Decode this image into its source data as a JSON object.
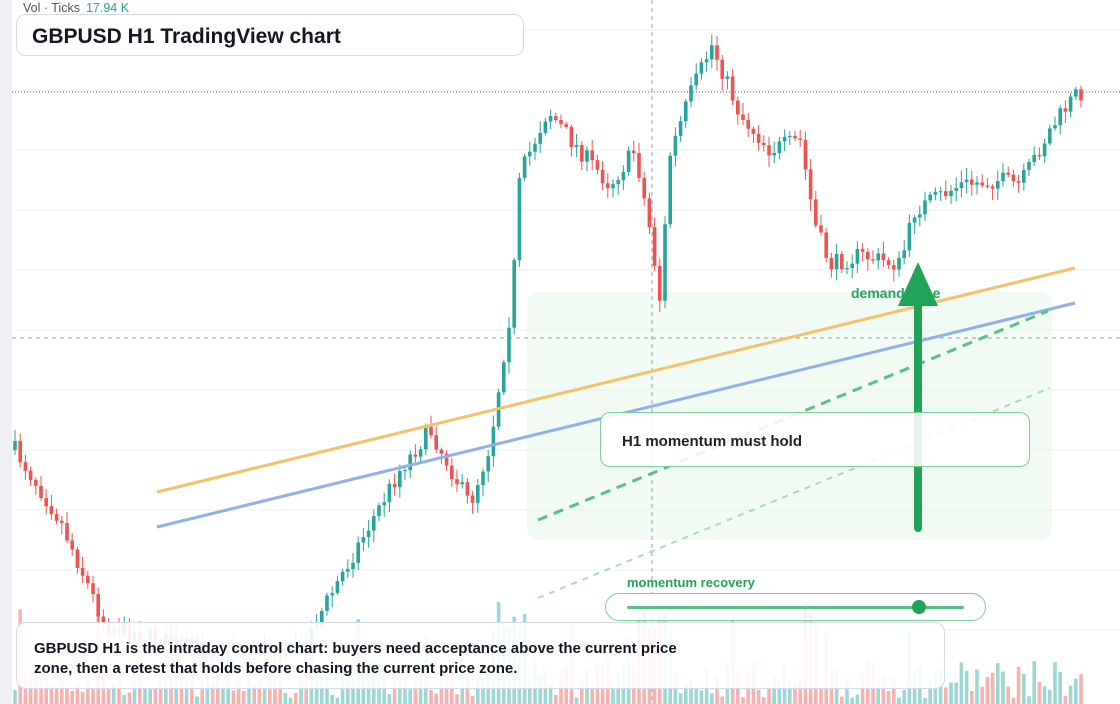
{
  "volume_legend": {
    "label": "Vol · Ticks",
    "value": "17.94 K"
  },
  "title": "GBPUSD H1 TradingView chart",
  "callout": "H1 momentum must hold",
  "zone_label": "demand zone",
  "slider": {
    "label": "momentum recovery",
    "value": 0.87
  },
  "description": "GBPUSD H1 is the intraday control chart: buyers need acceptance above the current price zone, then a retest that holds before chasing the current price zone.",
  "colors": {
    "up": "#26a69a",
    "down": "#ef5350",
    "accent": "#22a35a",
    "trend_orange": "#f5c26b",
    "trend_blue": "#8fb0ec"
  },
  "icons": [
    "up-arrow-icon"
  ]
}
